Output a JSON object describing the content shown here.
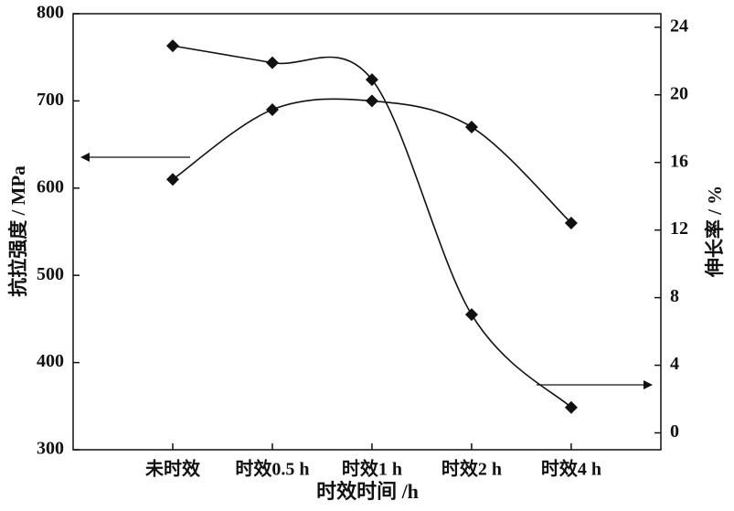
{
  "chart_data": {
    "type": "line",
    "x_label": "时效时间 /h",
    "y_label": "抗拉强度 / MPa",
    "y2_label": "伸长率 / %",
    "categories": [
      "未时效",
      "时效0.5 h",
      "时效1 h",
      "时效2 h",
      "时效4 h"
    ],
    "series": [
      {
        "name": "抗拉强度",
        "color": "#111111",
        "values": [
          610,
          690,
          700,
          670,
          560
        ]
      },
      {
        "name": "伸长率",
        "color": "#111111",
        "axis": "y2",
        "values": [
          22.9,
          21.9,
          20.9,
          7.0,
          1.5
        ]
      }
    ],
    "ylim": [
      300,
      800
    ],
    "yticks": [
      300,
      400,
      500,
      600,
      700,
      800
    ],
    "y2lim": [
      -1,
      24.8
    ],
    "y2ticks": [
      0,
      4,
      8,
      12,
      16,
      20,
      24
    ]
  }
}
